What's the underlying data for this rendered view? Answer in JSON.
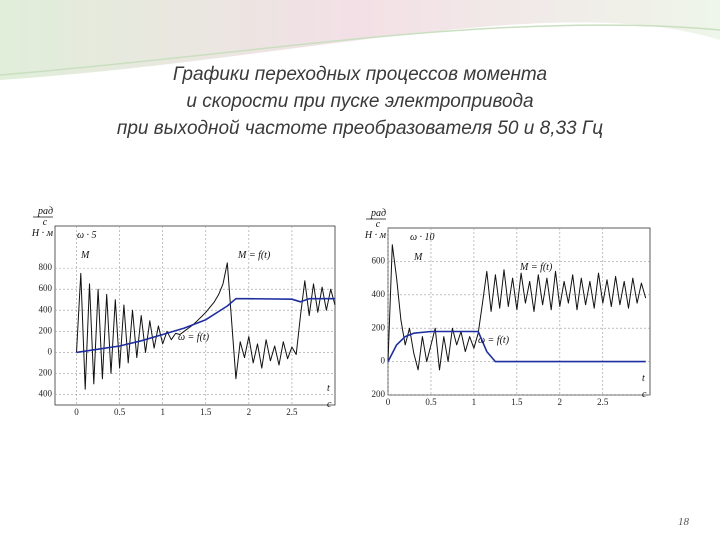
{
  "title_lines": [
    "Графики переходных процессов момента",
    "и скорости  при пуске электропривода",
    "при выходной частоте преобразователя  50 и 8,33 Гц"
  ],
  "page_number": "18",
  "chart_data": [
    {
      "type": "line",
      "y_label": {
        "top": "рад",
        "bottom": "с",
        "second": "Н · м"
      },
      "omega_label": "ω · 5",
      "m_label": "M",
      "x_label": {
        "name": "t",
        "unit": "с"
      },
      "annotations": [
        "M = f(t)",
        "ω = f(t)"
      ],
      "xlim": [
        -0.25,
        3.0
      ],
      "ylim": [
        -500,
        1200
      ],
      "xticks": [
        0,
        0.5,
        1,
        1.5,
        2,
        2.5
      ],
      "yticks": [
        800,
        600,
        400,
        200,
        0,
        {
          "value": -200,
          "label": "200"
        },
        {
          "value": -400,
          "label": "400"
        }
      ],
      "grid": true,
      "series": [
        {
          "name": "M",
          "color": "#111111",
          "x": [
            0,
            0.05,
            0.1,
            0.15,
            0.2,
            0.25,
            0.3,
            0.35,
            0.4,
            0.45,
            0.5,
            0.55,
            0.6,
            0.65,
            0.7,
            0.75,
            0.8,
            0.85,
            0.9,
            0.95,
            1.0,
            1.05,
            1.1,
            1.15,
            1.2,
            1.25,
            1.3,
            1.35,
            1.4,
            1.45,
            1.5,
            1.55,
            1.6,
            1.65,
            1.7,
            1.75,
            1.8,
            1.85,
            1.9,
            1.95,
            2.0,
            2.05,
            2.1,
            2.15,
            2.2,
            2.25,
            2.3,
            2.35,
            2.4,
            2.45,
            2.5,
            2.55,
            2.6,
            2.65,
            2.7,
            2.75,
            2.8,
            2.85,
            2.9,
            2.95,
            3.0
          ],
          "values": [
            0,
            750,
            -350,
            650,
            -300,
            600,
            -250,
            550,
            -200,
            500,
            -150,
            450,
            -100,
            400,
            -50,
            350,
            0,
            300,
            40,
            250,
            80,
            200,
            120,
            180,
            170,
            200,
            230,
            260,
            300,
            340,
            380,
            430,
            480,
            550,
            650,
            850,
            300,
            -250,
            100,
            -50,
            150,
            -100,
            80,
            -150,
            120,
            -80,
            60,
            -120,
            100,
            -60,
            50,
            -20,
            350,
            680,
            350,
            650,
            380,
            620,
            400,
            600,
            450
          ]
        },
        {
          "name": "ω",
          "color": "#1f2f9f",
          "x": [
            0,
            0.25,
            0.5,
            0.75,
            1.0,
            1.25,
            1.5,
            1.75,
            1.85,
            2.0,
            2.5,
            2.6,
            2.7,
            3.0
          ],
          "values": [
            0,
            30,
            60,
            110,
            170,
            230,
            310,
            440,
            510,
            510,
            505,
            480,
            510,
            510
          ]
        }
      ]
    },
    {
      "type": "line",
      "y_label": {
        "top": "рад",
        "bottom": "с",
        "second": "Н · м"
      },
      "omega_label": "ω · 10",
      "m_label": "M",
      "x_label": {
        "name": "t",
        "unit": "с"
      },
      "annotations": [
        "M = f(t)",
        "ω = f(t)"
      ],
      "xlim": [
        0,
        3.05
      ],
      "ylim": [
        -200,
        800
      ],
      "xticks": [
        0,
        0.5,
        1,
        1.5,
        2,
        2.5
      ],
      "yticks": [
        600,
        400,
        200,
        0,
        {
          "value": -200,
          "label": "200"
        }
      ],
      "grid": true,
      "series": [
        {
          "name": "M",
          "color": "#111111",
          "x": [
            0,
            0.05,
            0.1,
            0.15,
            0.2,
            0.25,
            0.3,
            0.35,
            0.4,
            0.45,
            0.5,
            0.55,
            0.6,
            0.65,
            0.7,
            0.75,
            0.8,
            0.85,
            0.9,
            0.95,
            1.0,
            1.05,
            1.1,
            1.15,
            1.2,
            1.25,
            1.3,
            1.35,
            1.4,
            1.45,
            1.5,
            1.55,
            1.6,
            1.65,
            1.7,
            1.75,
            1.8,
            1.85,
            1.9,
            1.95,
            2.0,
            2.05,
            2.1,
            2.15,
            2.2,
            2.25,
            2.3,
            2.35,
            2.4,
            2.45,
            2.5,
            2.55,
            2.6,
            2.65,
            2.7,
            2.75,
            2.8,
            2.85,
            2.9,
            2.95,
            3.0
          ],
          "values": [
            0,
            700,
            500,
            250,
            100,
            200,
            50,
            -50,
            150,
            0,
            100,
            200,
            -50,
            150,
            0,
            200,
            100,
            180,
            60,
            150,
            80,
            170,
            350,
            540,
            300,
            520,
            320,
            550,
            330,
            500,
            310,
            530,
            350,
            480,
            300,
            520,
            340,
            500,
            310,
            540,
            330,
            480,
            350,
            520,
            310,
            500,
            340,
            480,
            320,
            530,
            350,
            490,
            330,
            510,
            340,
            480,
            320,
            500,
            350,
            470,
            380
          ]
        },
        {
          "name": "ω",
          "color": "#1f2f9f",
          "x": [
            0,
            0.1,
            0.2,
            0.3,
            0.5,
            1.05,
            1.15,
            1.25,
            3.0
          ],
          "values": [
            0,
            100,
            150,
            170,
            180,
            180,
            60,
            0,
            0
          ]
        }
      ]
    }
  ]
}
